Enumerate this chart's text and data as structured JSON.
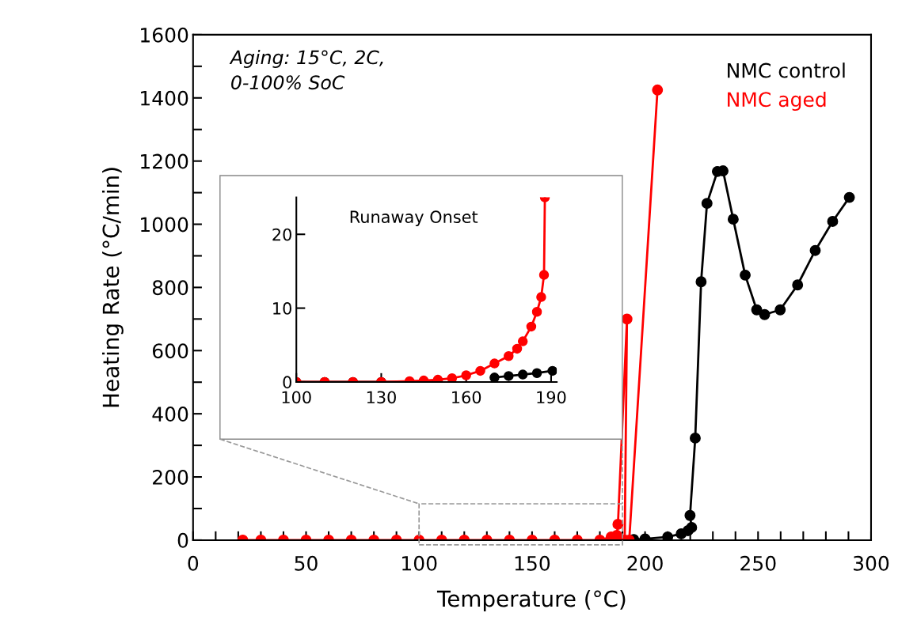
{
  "chart_data": [
    {
      "type": "line",
      "xlabel": "Temperature (°C)",
      "ylabel": "Heating Rate (°C/min)",
      "xlim": [
        0,
        300
      ],
      "ylim": [
        0,
        1600
      ],
      "xticks": [
        0,
        {
          "value": 10,
          "label": null
        },
        {
          "value": 20,
          "label": null
        },
        {
          "value": 30,
          "label": null
        },
        {
          "value": 40,
          "label": null
        },
        50,
        {
          "value": 60,
          "label": null
        },
        {
          "value": 70,
          "label": null
        },
        {
          "value": 80,
          "label": null
        },
        {
          "value": 90,
          "label": null
        },
        100,
        {
          "value": 110,
          "label": null
        },
        {
          "value": 120,
          "label": null
        },
        {
          "value": 130,
          "label": null
        },
        {
          "value": 140,
          "label": null
        },
        150,
        {
          "value": 160,
          "label": null
        },
        {
          "value": 170,
          "label": null
        },
        {
          "value": 180,
          "label": null
        },
        {
          "value": 190,
          "label": null
        },
        200,
        {
          "value": 210,
          "label": null
        },
        {
          "value": 220,
          "label": null
        },
        {
          "value": 230,
          "label": null
        },
        {
          "value": 240,
          "label": null
        },
        250,
        {
          "value": 260,
          "label": null
        },
        {
          "value": 270,
          "label": null
        },
        {
          "value": 280,
          "label": null
        },
        {
          "value": 290,
          "label": null
        },
        300
      ],
      "yticks": [
        0,
        {
          "value": 100,
          "label": null
        },
        200,
        {
          "value": 300,
          "label": null
        },
        400,
        {
          "value": 500,
          "label": null
        },
        600,
        {
          "value": 700,
          "label": null
        },
        800,
        {
          "value": 900,
          "label": null
        },
        1000,
        {
          "value": 1100,
          "label": null
        },
        1200,
        {
          "value": 1300,
          "label": null
        },
        1400,
        {
          "value": 1500,
          "label": null
        },
        1600
      ],
      "grid": false,
      "legend": "top right",
      "marker": "circle",
      "line_style": "solid",
      "annotations": [
        "Aging: 15°C, 2C,\n0-100% SoC"
      ],
      "series": [
        {
          "name": "NMC control",
          "color": "#000000",
          "x": [
            195,
            200,
            210,
            216,
            219,
            220.6,
            219.9,
            222.2,
            224.8,
            227.4,
            232,
            234.5,
            239,
            244.3,
            249.4,
            252.9,
            259.8,
            267.5,
            275.3,
            283,
            290.4
          ],
          "values": [
            2,
            4,
            10,
            20,
            30,
            40,
            78,
            323,
            818,
            1066,
            1167,
            1169,
            1016,
            839,
            729,
            714,
            729,
            808,
            917,
            1009,
            1085
          ]
        },
        {
          "name": "NMC aged",
          "color": "#ff0000",
          "x": [
            22,
            30,
            40,
            50,
            60,
            70,
            80,
            90,
            100,
            110,
            120,
            130,
            140,
            150,
            160,
            170,
            180,
            185,
            187.5,
            188,
            192,
            191,
            193,
            205.5
          ],
          "values": [
            0,
            0,
            0,
            0,
            0,
            0,
            0,
            0,
            0,
            0,
            0,
            0,
            0,
            0,
            0,
            0,
            0,
            10,
            15,
            50,
            700,
            0,
            0,
            1425
          ]
        }
      ]
    },
    {
      "type": "line",
      "title": "Runaway Onset",
      "xlim": [
        100,
        192
      ],
      "ylim": [
        0,
        25
      ],
      "xticks": [
        100,
        130,
        160,
        190
      ],
      "yticks": [
        0,
        10,
        20
      ],
      "grid": false,
      "marker": "circle",
      "line_style": "solid",
      "series": [
        {
          "color": "#000000",
          "x": [
            100,
            110,
            120,
            130,
            140,
            150,
            160,
            170,
            175,
            180,
            185,
            190.5
          ],
          "values": [
            0,
            0,
            0,
            0,
            0,
            0.1,
            null,
            0.6,
            0.8,
            1.0,
            1.2,
            1.5
          ]
        },
        {
          "color": "#ff0000",
          "x": [
            100,
            110,
            120,
            130,
            140,
            145,
            150,
            155,
            160,
            165,
            170,
            175,
            178,
            180,
            183,
            185,
            186.5,
            187.5,
            187.8
          ],
          "values": [
            0,
            0,
            0,
            0,
            0.1,
            0.2,
            0.3,
            0.5,
            0.9,
            1.5,
            2.5,
            3.5,
            4.5,
            5.5,
            7.5,
            9.5,
            11.5,
            14.5,
            25
          ]
        }
      ]
    }
  ]
}
